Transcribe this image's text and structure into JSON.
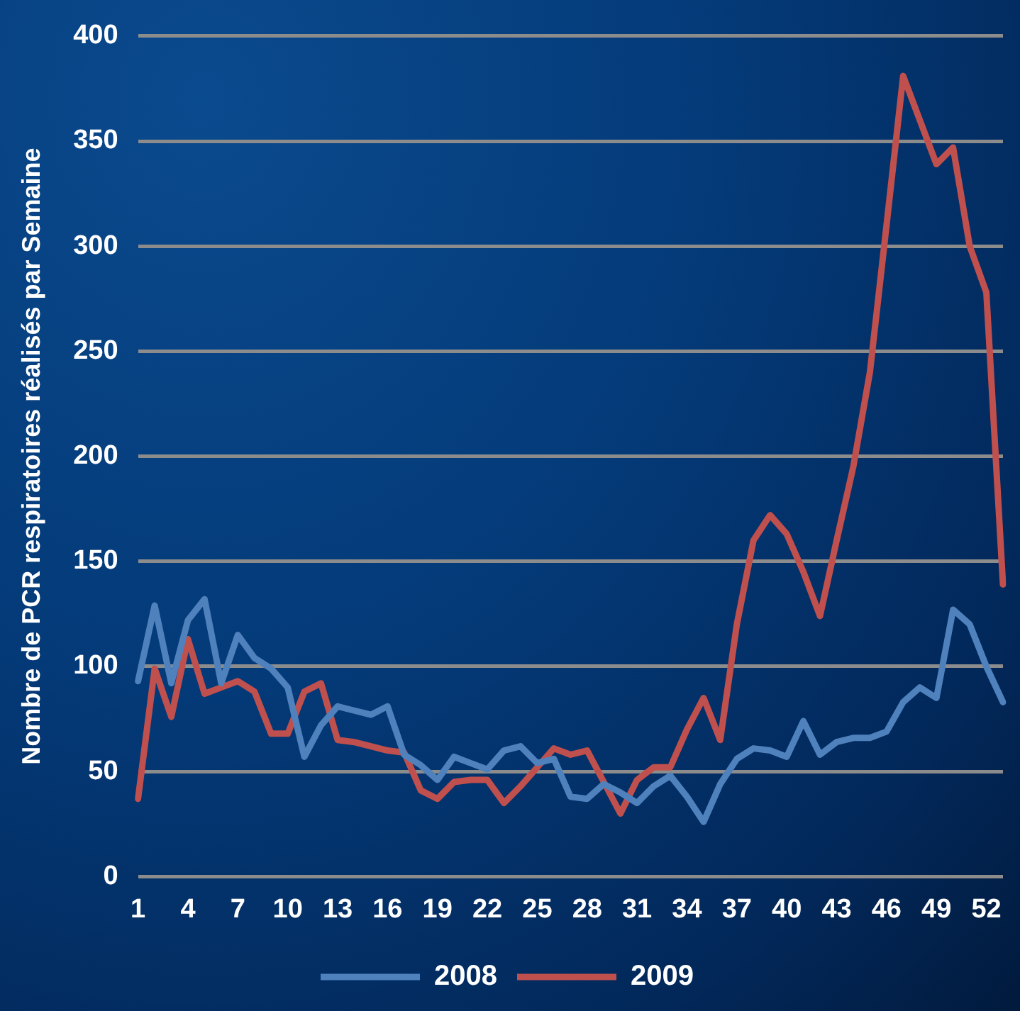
{
  "chart_data": {
    "type": "line",
    "ylabel": "Nombre de PCR respiratoires réalisés par Semaine",
    "categories": [
      "1",
      null,
      null,
      "4",
      null,
      null,
      "7",
      null,
      null,
      "10",
      null,
      null,
      "13",
      null,
      null,
      "16",
      null,
      null,
      "19",
      null,
      null,
      "22",
      null,
      null,
      "25",
      null,
      null,
      "28",
      null,
      null,
      "31",
      null,
      null,
      "34",
      null,
      null,
      "37",
      null,
      null,
      "40",
      null,
      null,
      "43",
      null,
      null,
      "46",
      null,
      null,
      "49",
      null,
      null,
      "52",
      null
    ],
    "series": [
      {
        "name": "2008",
        "color": "#4f81bd",
        "values": [
          93,
          129,
          92,
          122,
          132,
          92,
          115,
          104,
          99,
          90,
          57,
          72,
          81,
          79,
          77,
          81,
          58,
          53,
          46,
          57,
          54,
          51,
          60,
          62,
          54,
          56,
          38,
          37,
          44,
          40,
          35,
          43,
          48,
          38,
          26,
          44,
          56,
          61,
          60,
          57,
          74,
          58,
          64,
          66,
          66,
          69,
          83,
          90,
          85,
          127,
          120,
          100,
          83
        ]
      },
      {
        "name": "2009",
        "color": "#c0504d",
        "values": [
          37,
          99,
          76,
          113,
          87,
          90,
          93,
          88,
          68,
          68,
          88,
          92,
          65,
          64,
          62,
          60,
          59,
          41,
          37,
          45,
          46,
          46,
          35,
          43,
          52,
          61,
          58,
          60,
          45,
          30,
          46,
          52,
          52,
          70,
          85,
          65,
          120,
          160,
          172,
          163,
          145,
          124,
          160,
          195,
          240,
          310,
          381,
          360,
          339,
          347,
          300,
          278,
          139
        ]
      }
    ],
    "ylim": [
      0,
      400
    ],
    "yticks": [
      0,
      50,
      100,
      150,
      200,
      250,
      300,
      350,
      400
    ],
    "grid": "y",
    "legend": "bottom"
  }
}
